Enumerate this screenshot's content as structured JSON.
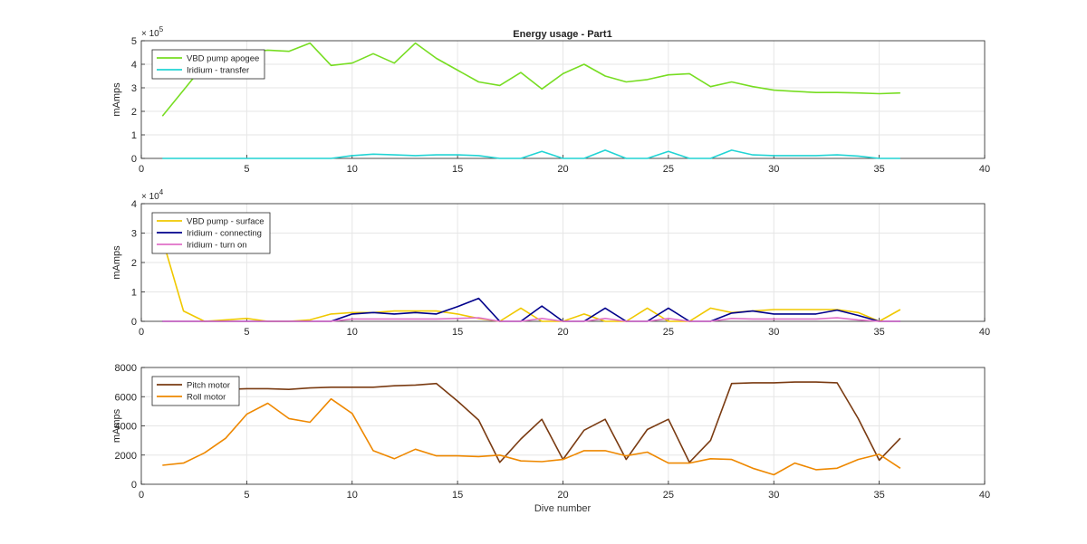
{
  "figure": {
    "title": "Energy usage - Part1",
    "xlabel": "Dive number"
  },
  "chart_data": [
    {
      "type": "line",
      "title": "Energy usage - Part1",
      "xlabel": "",
      "ylabel": "mAmps",
      "xlim": [
        0,
        40
      ],
      "ylim": [
        0,
        5
      ],
      "yscale_label": "× 10",
      "yscale_exp": "5",
      "xticks": [
        0,
        5,
        10,
        15,
        20,
        25,
        30,
        35,
        40
      ],
      "yticks": [
        0,
        1,
        2,
        3,
        4,
        5
      ],
      "grid": true,
      "legend_position": "top-left",
      "series": [
        {
          "name": "VBD pump apogee",
          "color": "#77dd22",
          "x": [
            1,
            2,
            3,
            4,
            5,
            6,
            7,
            8,
            9,
            10,
            11,
            12,
            13,
            14,
            15,
            16,
            17,
            18,
            19,
            20,
            21,
            22,
            23,
            24,
            25,
            26,
            27,
            28,
            29,
            30,
            31,
            32,
            33,
            34,
            35,
            36
          ],
          "y": [
            1.8,
            2.9,
            4.0,
            4.3,
            4.5,
            4.6,
            4.55,
            4.9,
            3.95,
            4.05,
            4.45,
            4.05,
            4.9,
            4.25,
            3.75,
            3.25,
            3.1,
            3.65,
            2.95,
            3.6,
            4.0,
            3.5,
            3.25,
            3.35,
            3.55,
            3.6,
            3.05,
            3.25,
            3.05,
            2.9,
            2.85,
            2.8,
            2.8,
            2.78,
            2.75,
            2.78
          ]
        },
        {
          "name": "Iridium - transfer",
          "color": "#22d4d4",
          "x": [
            1,
            2,
            3,
            4,
            5,
            6,
            7,
            8,
            9,
            10,
            11,
            12,
            13,
            14,
            15,
            16,
            17,
            18,
            19,
            20,
            21,
            22,
            23,
            24,
            25,
            26,
            27,
            28,
            29,
            30,
            31,
            32,
            33,
            34,
            35,
            36
          ],
          "y": [
            0,
            0,
            0,
            0,
            0,
            0,
            0,
            0,
            0,
            0.12,
            0.18,
            0.15,
            0.12,
            0.15,
            0.15,
            0.12,
            0,
            0,
            0.3,
            0,
            0,
            0.35,
            0,
            0,
            0.3,
            0,
            0,
            0.35,
            0.15,
            0.12,
            0.12,
            0.12,
            0.15,
            0.1,
            0,
            0
          ]
        }
      ]
    },
    {
      "type": "line",
      "title": "",
      "xlabel": "",
      "ylabel": "mAmps",
      "xlim": [
        0,
        40
      ],
      "ylim": [
        0,
        4
      ],
      "yscale_label": "× 10",
      "yscale_exp": "4",
      "xticks": [
        0,
        5,
        10,
        15,
        20,
        25,
        30,
        35,
        40
      ],
      "yticks": [
        0,
        1,
        2,
        3,
        4
      ],
      "grid": true,
      "legend_position": "top-left",
      "series": [
        {
          "name": "VBD pump - surface",
          "color": "#f0c800",
          "x": [
            1,
            2,
            3,
            4,
            5,
            6,
            7,
            8,
            9,
            10,
            11,
            12,
            13,
            14,
            15,
            16,
            17,
            18,
            19,
            20,
            21,
            22,
            23,
            24,
            25,
            26,
            27,
            28,
            29,
            30,
            31,
            32,
            33,
            34,
            35,
            36
          ],
          "y": [
            2.8,
            0.35,
            0,
            0.05,
            0.1,
            0,
            0,
            0.05,
            0.25,
            0.3,
            0.3,
            0.35,
            0.35,
            0.35,
            0.25,
            0.1,
            0,
            0.45,
            0,
            0,
            0.25,
            0,
            0,
            0.45,
            0,
            0,
            0.45,
            0.3,
            0.35,
            0.4,
            0.4,
            0.4,
            0.4,
            0.3,
            0,
            0.4
          ]
        },
        {
          "name": "Iridium - connecting",
          "color": "#00008b",
          "x": [
            1,
            2,
            3,
            4,
            5,
            6,
            7,
            8,
            9,
            10,
            11,
            12,
            13,
            14,
            15,
            16,
            17,
            18,
            19,
            20,
            21,
            22,
            23,
            24,
            25,
            26,
            27,
            28,
            29,
            30,
            31,
            32,
            33,
            34,
            35,
            36
          ],
          "y": [
            0,
            0,
            0,
            0,
            0,
            0,
            0,
            0,
            0,
            0.25,
            0.3,
            0.25,
            0.3,
            0.25,
            0.5,
            0.78,
            0,
            0,
            0.52,
            0,
            0,
            0.45,
            0,
            0,
            0.45,
            0,
            0,
            0.28,
            0.35,
            0.25,
            0.25,
            0.25,
            0.38,
            0.2,
            0,
            0
          ]
        },
        {
          "name": "Iridium - turn on",
          "color": "#e070c8",
          "x": [
            1,
            2,
            3,
            4,
            5,
            6,
            7,
            8,
            9,
            10,
            11,
            12,
            13,
            14,
            15,
            16,
            17,
            18,
            19,
            20,
            21,
            22,
            23,
            24,
            25,
            26,
            27,
            28,
            29,
            30,
            31,
            32,
            33,
            34,
            35,
            36
          ],
          "y": [
            0,
            0,
            0,
            0,
            0,
            0,
            0,
            0,
            0,
            0.08,
            0.08,
            0.08,
            0.08,
            0.08,
            0.1,
            0.12,
            0,
            0,
            0.1,
            0,
            0,
            0.1,
            0,
            0,
            0.1,
            0,
            0,
            0.1,
            0.08,
            0.08,
            0.08,
            0.08,
            0.12,
            0.05,
            0,
            0
          ]
        }
      ]
    },
    {
      "type": "line",
      "title": "",
      "xlabel": "Dive number",
      "ylabel": "mAmps",
      "xlim": [
        0,
        40
      ],
      "ylim": [
        0,
        8000
      ],
      "yscale_label": "",
      "yscale_exp": "",
      "xticks": [
        0,
        5,
        10,
        15,
        20,
        25,
        30,
        35,
        40
      ],
      "yticks": [
        0,
        2000,
        4000,
        6000,
        8000
      ],
      "grid": true,
      "legend_position": "top-left",
      "series": [
        {
          "name": "Pitch motor",
          "color": "#7a3b12",
          "x": [
            1,
            2,
            3,
            4,
            5,
            6,
            7,
            8,
            9,
            10,
            11,
            12,
            13,
            14,
            15,
            16,
            17,
            18,
            19,
            20,
            21,
            22,
            23,
            24,
            25,
            26,
            27,
            28,
            29,
            30,
            31,
            32,
            33,
            34,
            35,
            36
          ],
          "y": [
            6400,
            6450,
            6500,
            6500,
            6550,
            6550,
            6500,
            6600,
            6650,
            6650,
            6650,
            6750,
            6800,
            6900,
            5700,
            4400,
            1500,
            3100,
            4450,
            1700,
            3700,
            4450,
            1700,
            3750,
            4450,
            1500,
            3000,
            6900,
            6950,
            6950,
            7000,
            7000,
            6950,
            4500,
            1650,
            3150
          ]
        },
        {
          "name": "Roll motor",
          "color": "#ee8800",
          "x": [
            1,
            2,
            3,
            4,
            5,
            6,
            7,
            8,
            9,
            10,
            11,
            12,
            13,
            14,
            15,
            16,
            17,
            18,
            19,
            20,
            21,
            22,
            23,
            24,
            25,
            26,
            27,
            28,
            29,
            30,
            31,
            32,
            33,
            34,
            35,
            36
          ],
          "y": [
            1300,
            1450,
            2150,
            3150,
            4800,
            5550,
            4500,
            4250,
            5850,
            4850,
            2300,
            1750,
            2400,
            1950,
            1950,
            1900,
            2000,
            1600,
            1550,
            1700,
            2300,
            2300,
            1950,
            2200,
            1450,
            1450,
            1750,
            1700,
            1100,
            650,
            1450,
            1000,
            1100,
            1700,
            2050,
            1100
          ]
        }
      ]
    }
  ]
}
